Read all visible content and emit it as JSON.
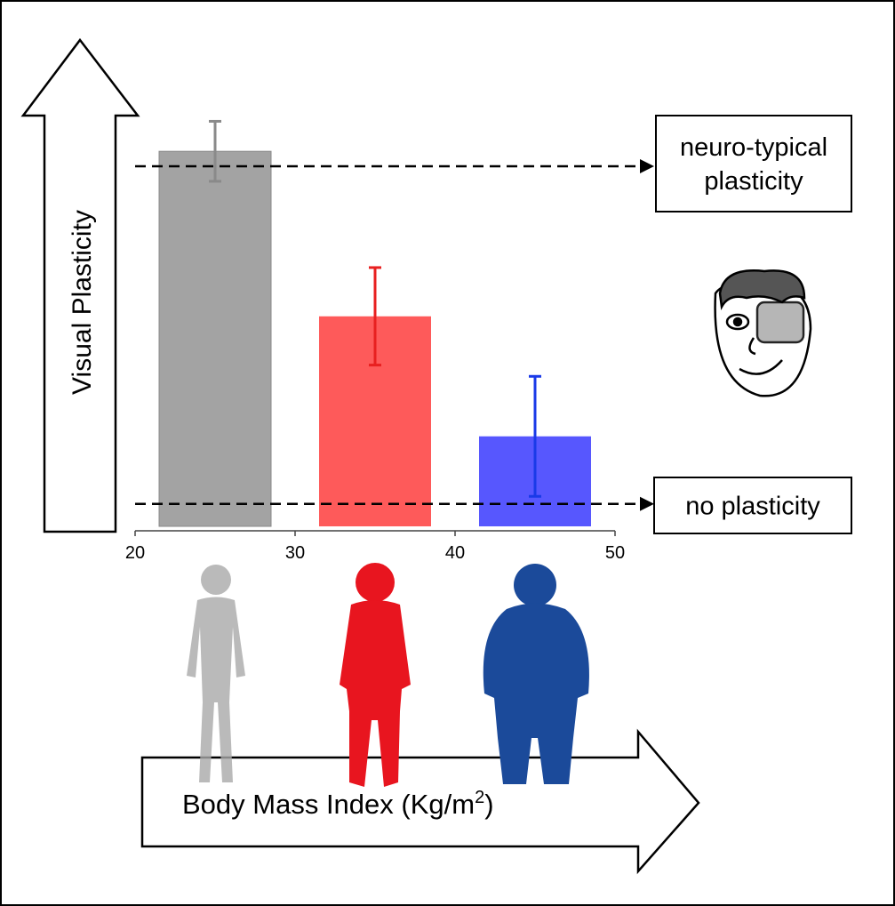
{
  "chart_data": {
    "type": "bar",
    "y_label": "Visual Plasticity",
    "x_label": {
      "text": "Body Mass Index (Kg/m",
      "sup": "2",
      "end": ")"
    },
    "x": [
      25,
      35,
      45
    ],
    "values": [
      100,
      56,
      24
    ],
    "errors": [
      8,
      13,
      16
    ],
    "colors": [
      "#a3a3a3",
      "#fe5a5a",
      "#5757fe"
    ],
    "error_colors": [
      "#8a8a8a",
      "#e82020",
      "#1a3ae8"
    ],
    "xlim": [
      20,
      50
    ],
    "xticks": [
      20,
      30,
      40,
      50
    ],
    "ylim": [
      0,
      110
    ],
    "reference_lines": [
      {
        "value": 96,
        "label": [
          "neuro-typical",
          "plasticity"
        ]
      },
      {
        "value": 6,
        "label": [
          "no plasticity"
        ]
      }
    ]
  }
}
